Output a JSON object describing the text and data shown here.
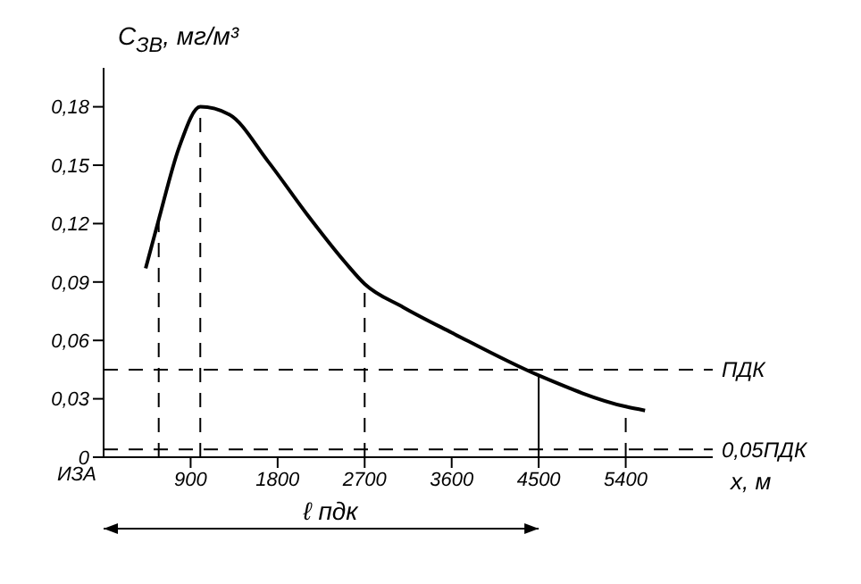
{
  "chart_data": {
    "type": "line",
    "ylabel": "C$_{ЗВ}$, мг/м³",
    "xlabel": "x, м",
    "annotations": [
      "ℓ пдк",
      "ИЗА"
    ],
    "xlim": [
      0,
      6300
    ],
    "ylim": [
      0,
      0.2
    ],
    "xticks": [
      900,
      1800,
      2700,
      3600,
      4500,
      5400
    ],
    "yticks": [
      {
        "value": 0,
        "label": "0"
      },
      {
        "value": 0.03,
        "label": "0,03"
      },
      {
        "value": 0.06,
        "label": "0,06"
      },
      {
        "value": 0.09,
        "label": "0,09"
      },
      {
        "value": 0.12,
        "label": "0,12"
      },
      {
        "value": 0.15,
        "label": "0,15"
      },
      {
        "value": 0.18,
        "label": "0,18"
      }
    ],
    "marker": "none",
    "series": [
      {
        "color": "#000000",
        "line_style": "solid",
        "x": [
          435,
          570,
          780,
          1000,
          1300,
          1700,
          2100,
          2500,
          2700,
          3100,
          3600,
          4500,
          5400,
          5600
        ],
        "values": [
          0.097,
          0.122,
          0.159,
          0.18,
          0.176,
          0.152,
          0.125,
          0.1,
          0.089,
          0.077,
          0.064,
          0.042,
          0.026,
          0.024
        ]
      },
      {
        "color": "#000000",
        "line_style": "dashed",
        "x": [
          570,
          570
        ],
        "values": [
          0,
          0.122
        ]
      },
      {
        "color": "#000000",
        "line_style": "dashed",
        "x": [
          1000,
          1000
        ],
        "values": [
          0,
          0.18
        ]
      },
      {
        "color": "#000000",
        "line_style": "dashed",
        "x": [
          2700,
          2700
        ],
        "values": [
          0,
          0.089
        ]
      },
      {
        "color": "#000000",
        "line_style": "solid",
        "x": [
          4500,
          4500
        ],
        "values": [
          0,
          0.042
        ]
      },
      {
        "color": "#000000",
        "line_style": "dashed",
        "x": [
          5400,
          5400
        ],
        "values": [
          0,
          0.026
        ]
      }
    ],
    "ref_lines": [
      {
        "axis": "y",
        "value": 0.045,
        "label": "ПДК",
        "color": "#000000",
        "line_style": "dashed"
      },
      {
        "axis": "y",
        "value": 0.004,
        "label": "0,05ПДК",
        "color": "#000000",
        "line_style": "dashed"
      }
    ]
  }
}
